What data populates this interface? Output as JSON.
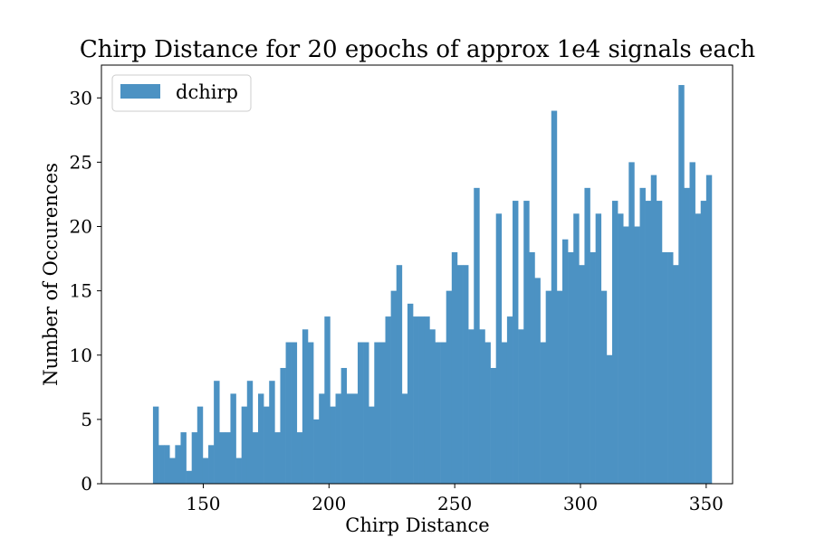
{
  "chart_data": {
    "type": "bar",
    "title": "Chirp Distance for 20 epochs of approx 1e4 signals each",
    "xlabel": "Chirp Distance",
    "ylabel": "Number of Occurences",
    "xlim": [
      109.5,
      360.5
    ],
    "ylim": [
      0,
      32.55
    ],
    "bin_start": 130,
    "bin_width": 2.2,
    "xticks": [
      150,
      200,
      250,
      300,
      350
    ],
    "yticks": [
      0,
      5,
      10,
      15,
      20,
      25,
      30
    ],
    "grid": false,
    "legend_position": "top-left",
    "series": [
      {
        "name": "dchirp",
        "color": "#4c92c3",
        "values": [
          6,
          3,
          3,
          2,
          3,
          4,
          1,
          4,
          6,
          2,
          3,
          8,
          4,
          4,
          7,
          2,
          6,
          8,
          4,
          7,
          6,
          8,
          4,
          9,
          11,
          11,
          4,
          12,
          11,
          5,
          7,
          13,
          6,
          7,
          9,
          7,
          7,
          11,
          11,
          6,
          11,
          11,
          13,
          15,
          17,
          7,
          14,
          13,
          13,
          13,
          12,
          11,
          11,
          15,
          18,
          17,
          17,
          12,
          23,
          12,
          11,
          9,
          21,
          11,
          13,
          22,
          12,
          22,
          18,
          16,
          11,
          15,
          29,
          15,
          19,
          18,
          21,
          17,
          23,
          18,
          21,
          15,
          10,
          22,
          21,
          20,
          25,
          20,
          23,
          22,
          24,
          22,
          18,
          18,
          17,
          31,
          23,
          25,
          21,
          22,
          24
        ]
      }
    ]
  }
}
